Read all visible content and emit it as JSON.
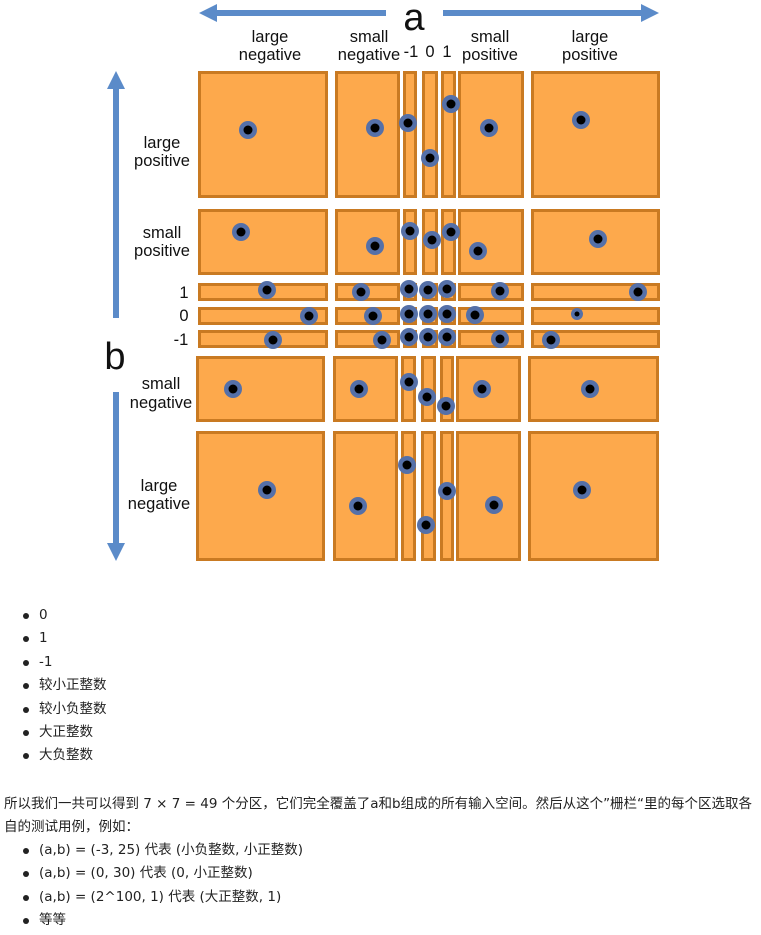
{
  "figure": {
    "a_label": "a",
    "b_label": "b",
    "col_headers": [
      {
        "line1": "large",
        "line2": "negative"
      },
      {
        "line1": "small",
        "line2": "negative"
      },
      {
        "line1": "-1",
        "line2": ""
      },
      {
        "line1": "0",
        "line2": ""
      },
      {
        "line1": "1",
        "line2": ""
      },
      {
        "line1": "small",
        "line2": "positive"
      },
      {
        "line1": "large",
        "line2": "positive"
      }
    ],
    "row_headers": [
      {
        "line1": "large",
        "line2": "positive"
      },
      {
        "line1": "small",
        "line2": "positive"
      },
      {
        "line1": "1",
        "line2": ""
      },
      {
        "line1": "0",
        "line2": ""
      },
      {
        "line1": "-1",
        "line2": ""
      },
      {
        "line1": "small",
        "line2": "negative"
      },
      {
        "line1": "large",
        "line2": "negative"
      }
    ],
    "colors": {
      "cell": "#FDA94C",
      "cell_border": "#C97A22",
      "arrow": "#5B8BC9",
      "dot_ring": "#5570A8",
      "dot_core": "#000000"
    }
  },
  "list1": [
    "0",
    "1",
    "-1",
    "较小正整数",
    "较小负整数",
    "大正整数",
    "大负整数"
  ],
  "paragraph": "所以我们一共可以得到 7 × 7 = 49 个分区，它们完全覆盖了a和b组成的所有输入空间。然后从这个”栅栏“里的每个区选取各自的测试用例，例如：",
  "list2": [
    "(a,b) = (-3, 25) 代表 (小负整数, 小正整数)",
    "(a,b) = (0, 30) 代表  (0, 小正整数)",
    "(a,b) = (2^100, 1) 代表 (大正整数, 1)",
    "等等"
  ]
}
